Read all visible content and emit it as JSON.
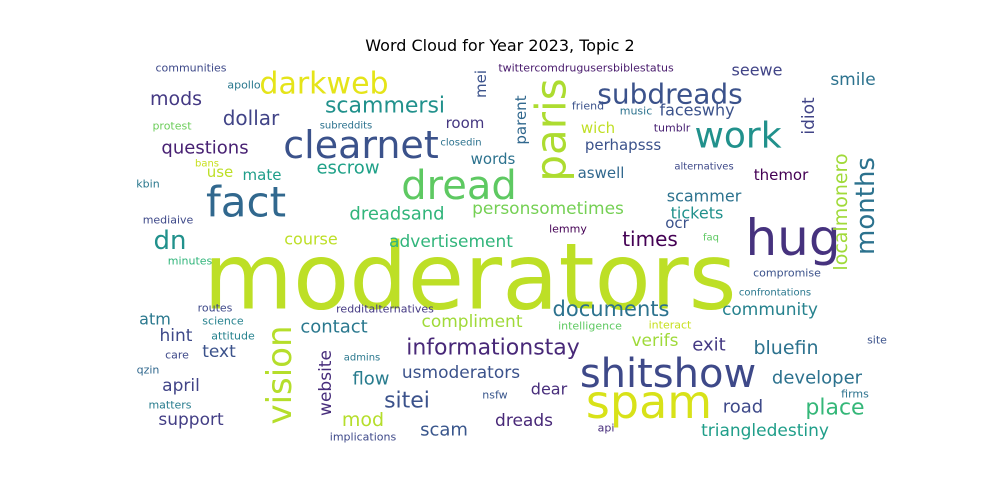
{
  "chart_data": {
    "type": "wordcloud",
    "title": "Word Cloud for Year 2023, Topic 2",
    "words": [
      {
        "text": "moderators",
        "color": "#bddf26"
      },
      {
        "text": "hug",
        "color": "#46327e"
      },
      {
        "text": "spam",
        "color": "#d8e219"
      },
      {
        "text": "shitshow",
        "color": "#3e4989"
      },
      {
        "text": "fact",
        "color": "#31688e"
      },
      {
        "text": "clearnet",
        "color": "#3b528b"
      },
      {
        "text": "dread",
        "color": "#5ec962"
      },
      {
        "text": "paris",
        "color": "#addc30"
      },
      {
        "text": "work",
        "color": "#21918c"
      },
      {
        "text": "vision",
        "color": "#b5de2b"
      },
      {
        "text": "darkweb",
        "color": "#e5e419"
      },
      {
        "text": "subdreads",
        "color": "#3b528b"
      },
      {
        "text": "months",
        "color": "#2c728e"
      },
      {
        "text": "dn",
        "color": "#21918c"
      },
      {
        "text": "scammersi",
        "color": "#21918c"
      },
      {
        "text": "informationstay",
        "color": "#482878"
      },
      {
        "text": "documents",
        "color": "#2c728e"
      },
      {
        "text": "localmonero",
        "color": "#a0da39"
      },
      {
        "text": "sitei",
        "color": "#3b528b"
      },
      {
        "text": "place",
        "color": "#35b779"
      },
      {
        "text": "mods",
        "color": "#443983"
      },
      {
        "text": "dollar",
        "color": "#414487"
      },
      {
        "text": "questions",
        "color": "#482173"
      },
      {
        "text": "escrow",
        "color": "#1fa188"
      },
      {
        "text": "dreadsand",
        "color": "#31b57b"
      },
      {
        "text": "personsometimes",
        "color": "#75d054"
      },
      {
        "text": "times",
        "color": "#440154"
      },
      {
        "text": "advertisement",
        "color": "#31b57b"
      },
      {
        "text": "course",
        "color": "#bddf26"
      },
      {
        "text": "compliment",
        "color": "#a0da39"
      },
      {
        "text": "community",
        "color": "#26828e"
      },
      {
        "text": "contact",
        "color": "#2a788e"
      },
      {
        "text": "bluefin",
        "color": "#2c728e"
      },
      {
        "text": "exit",
        "color": "#443983"
      },
      {
        "text": "verifs",
        "color": "#9fda3a"
      },
      {
        "text": "usmoderators",
        "color": "#3b528b"
      },
      {
        "text": "developer",
        "color": "#2c728e"
      },
      {
        "text": "scam",
        "color": "#39568c"
      },
      {
        "text": "mod",
        "color": "#b5de2b"
      },
      {
        "text": "flow",
        "color": "#287c8e"
      },
      {
        "text": "dreads",
        "color": "#482878"
      },
      {
        "text": "road",
        "color": "#3e4989"
      },
      {
        "text": "triangledestiny",
        "color": "#1f9e89"
      },
      {
        "text": "support",
        "color": "#433e85"
      },
      {
        "text": "april",
        "color": "#414487"
      },
      {
        "text": "website",
        "color": "#472d7b"
      },
      {
        "text": "text",
        "color": "#3b528b"
      },
      {
        "text": "hint",
        "color": "#3e4989"
      },
      {
        "text": "atm",
        "color": "#2a788e"
      },
      {
        "text": "dear",
        "color": "#472d7b"
      },
      {
        "text": "smile",
        "color": "#2c728e"
      },
      {
        "text": "seewe",
        "color": "#414487"
      },
      {
        "text": "faceswhy",
        "color": "#3b528b"
      },
      {
        "text": "room",
        "color": "#453781"
      },
      {
        "text": "wich",
        "color": "#c0df25"
      },
      {
        "text": "perhapsss",
        "color": "#3b528b"
      },
      {
        "text": "aswell",
        "color": "#31688e"
      },
      {
        "text": "words",
        "color": "#2c728e"
      },
      {
        "text": "scammer",
        "color": "#2c728e"
      },
      {
        "text": "tickets",
        "color": "#21918c"
      },
      {
        "text": "ocr",
        "color": "#3b528b"
      },
      {
        "text": "themor",
        "color": "#440154"
      },
      {
        "text": "idiot",
        "color": "#414487"
      },
      {
        "text": "use",
        "color": "#bddf26"
      },
      {
        "text": "mate",
        "color": "#1f9e89"
      },
      {
        "text": "parent",
        "color": "#31688e"
      },
      {
        "text": "mei",
        "color": "#3b528b"
      },
      {
        "text": "communities",
        "color": "#3e4989"
      },
      {
        "text": "apollo",
        "color": "#2a788e"
      },
      {
        "text": "twittercomdrugusersbiblestatus",
        "color": "#481a6c"
      },
      {
        "text": "friend",
        "color": "#3b528b"
      },
      {
        "text": "music",
        "color": "#2c728e"
      },
      {
        "text": "protest",
        "color": "#6ccd5a"
      },
      {
        "text": "subreddits",
        "color": "#2c728e"
      },
      {
        "text": "tumblr",
        "color": "#482173"
      },
      {
        "text": "closedin",
        "color": "#2c728e"
      },
      {
        "text": "bans",
        "color": "#c8e020"
      },
      {
        "text": "alternatives",
        "color": "#3e4989"
      },
      {
        "text": "kbin",
        "color": "#2a788e"
      },
      {
        "text": "mediaive",
        "color": "#3e4989"
      },
      {
        "text": "lemmy",
        "color": "#440154"
      },
      {
        "text": "minutes",
        "color": "#31b57b"
      },
      {
        "text": "faq",
        "color": "#5ec962"
      },
      {
        "text": "compromise",
        "color": "#3b528b"
      },
      {
        "text": "confrontations",
        "color": "#2a788e"
      },
      {
        "text": "routes",
        "color": "#3e4989"
      },
      {
        "text": "redditalternatives",
        "color": "#443983"
      },
      {
        "text": "science",
        "color": "#26828e"
      },
      {
        "text": "attitude",
        "color": "#26828e"
      },
      {
        "text": "intelligence",
        "color": "#5ec962"
      },
      {
        "text": "interact",
        "color": "#c8e020"
      },
      {
        "text": "site",
        "color": "#3b528b"
      },
      {
        "text": "care",
        "color": "#3e4989"
      },
      {
        "text": "admins",
        "color": "#2a788e"
      },
      {
        "text": "qzin",
        "color": "#31688e"
      },
      {
        "text": "nsfw",
        "color": "#39568c"
      },
      {
        "text": "firms",
        "color": "#2c728e"
      },
      {
        "text": "matters",
        "color": "#287c8e"
      },
      {
        "text": "implications",
        "color": "#3e4989"
      },
      {
        "text": "api",
        "color": "#472d7b"
      }
    ]
  }
}
